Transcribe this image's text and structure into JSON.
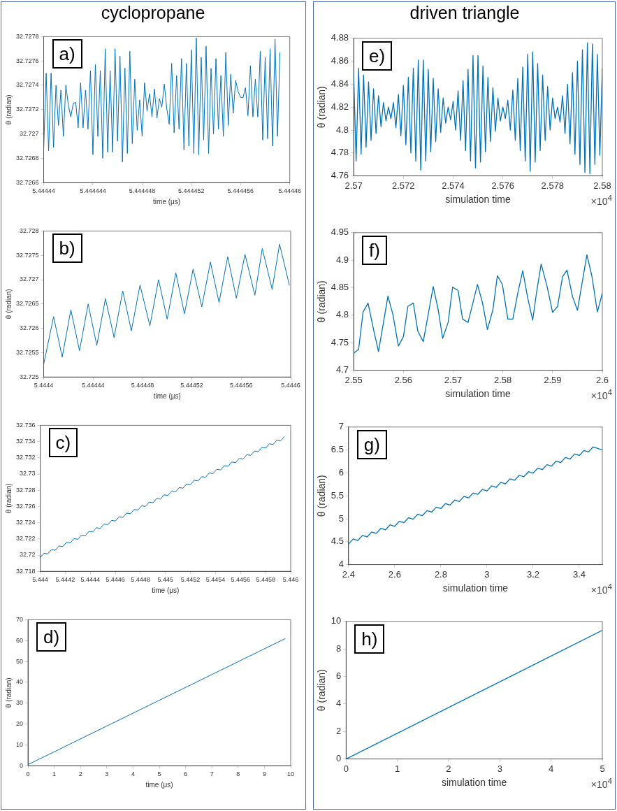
{
  "chart_data": [
    {
      "type": "line",
      "title": "cyclopropane",
      "xlabel": "time (μs)",
      "ylabel": "θ (radian)",
      "annotations": [
        "a)"
      ],
      "color": "#0072bd",
      "marker": "none",
      "xlim": [
        5.44444,
        5.44446
      ],
      "ylim": [
        32.7266,
        32.7278
      ],
      "xticks": [
        5.44444,
        5.444444,
        5.444448,
        5.444452,
        5.444456,
        5.44446
      ],
      "yticks": [
        32.7266,
        32.7268,
        32.727,
        32.7272,
        32.7274,
        32.7276,
        32.7278
      ],
      "x": [
        5.44444,
        5.4444402,
        5.4444404,
        5.4444406,
        5.4444408,
        5.444441,
        5.4444412,
        5.4444414,
        5.4444416,
        5.4444418,
        5.444442,
        5.4444422,
        5.4444424,
        5.4444426,
        5.4444428,
        5.444443,
        5.4444432,
        5.4444434,
        5.4444436,
        5.4444438,
        5.444444,
        5.4444442,
        5.4444444,
        5.4444446,
        5.4444448,
        5.444445,
        5.4444452,
        5.4444454,
        5.4444456,
        5.4444458,
        5.444446,
        5.4444462,
        5.4444464,
        5.4444466,
        5.4444468,
        5.444447,
        5.4444472,
        5.4444474,
        5.4444476,
        5.4444478,
        5.444448,
        5.4444482,
        5.4444484,
        5.4444486,
        5.4444488,
        5.444449,
        5.4444492,
        5.4444494,
        5.4444496,
        5.4444498,
        5.44445,
        5.4444502,
        5.4444504,
        5.4444506,
        5.4444508,
        5.444451,
        5.4444512,
        5.4444514,
        5.4444516,
        5.4444518,
        5.444452,
        5.4444522,
        5.4444524,
        5.4444526,
        5.4444528,
        5.444453,
        5.4444532,
        5.4444534,
        5.4444536,
        5.4444538,
        5.444454,
        5.4444542,
        5.4444544,
        5.4444546,
        5.4444548,
        5.444455,
        5.4444552,
        5.4444554,
        5.4444556,
        5.4444558,
        5.444456,
        5.4444562,
        5.4444564,
        5.4444566,
        5.4444568,
        5.444457,
        5.4444572,
        5.4444574,
        5.4444576,
        5.4444578,
        5.444458,
        5.4444582,
        5.4444584,
        5.4444586,
        5.4444588,
        5.444459,
        5.4444592
      ],
      "values": [
        32.72688,
        32.7275,
        32.72686,
        32.7275,
        32.72689,
        32.7274,
        32.72707,
        32.72736,
        32.72698,
        32.7274,
        32.72724,
        32.72714,
        32.72725,
        32.72726,
        32.72705,
        32.72742,
        32.72705,
        32.72736,
        32.72704,
        32.72752,
        32.72683,
        32.72757,
        32.72698,
        32.72752,
        32.7268,
        32.7277,
        32.72685,
        32.72752,
        32.72685,
        32.7277,
        32.72694,
        32.72764,
        32.72677,
        32.72754,
        32.72684,
        32.72768,
        32.72692,
        32.72745,
        32.72703,
        32.72728,
        32.72698,
        32.72742,
        32.72719,
        32.72733,
        32.72714,
        32.72737,
        32.72713,
        32.72729,
        32.72722,
        32.72741,
        32.72721,
        32.72708,
        32.72758,
        32.72701,
        32.72748,
        32.72704,
        32.72762,
        32.72687,
        32.72758,
        32.7269,
        32.72769,
        32.72684,
        32.72779,
        32.72683,
        32.72763,
        32.72695,
        32.72772,
        32.72684,
        32.72754,
        32.727,
        32.72762,
        32.72704,
        32.72748,
        32.72698,
        32.72767,
        32.72707,
        32.72749,
        32.72717,
        32.72744,
        32.72735,
        32.7273,
        32.7273,
        32.72738,
        32.72715,
        32.72756,
        32.72714,
        32.72745,
        32.72714,
        32.72768,
        32.72695,
        32.72763,
        32.72696,
        32.7277,
        32.7269,
        32.72778,
        32.72698,
        32.72767
      ]
    },
    {
      "type": "line",
      "xlabel": "time (μs)",
      "ylabel": "θ (radian)",
      "annotations": [
        "b)"
      ],
      "color": "#0072bd",
      "marker": "none",
      "xlim": [
        5.4444,
        5.4446
      ],
      "ylim": [
        32.725,
        32.728
      ],
      "xticks": [
        5.4444,
        5.44444,
        5.44448,
        5.44452,
        5.44456,
        5.4446
      ],
      "yticks": [
        32.725,
        32.7255,
        32.726,
        32.7265,
        32.727,
        32.7275,
        32.728
      ],
      "x": [
        5.4444,
        5.444408,
        5.444415,
        5.444422,
        5.444429,
        5.444436,
        5.444443,
        5.44445,
        5.444457,
        5.444464,
        5.444471,
        5.444478,
        5.444486,
        5.444493,
        5.4445,
        5.444507,
        5.444514,
        5.444521,
        5.444528,
        5.444535,
        5.444542,
        5.444549,
        5.444556,
        5.444563,
        5.444571,
        5.444577,
        5.444585,
        5.444591,
        5.444599
      ],
      "values": [
        32.72526,
        32.72624,
        32.72541,
        32.72638,
        32.72554,
        32.7265,
        32.72565,
        32.72661,
        32.72581,
        32.72677,
        32.72595,
        32.72689,
        32.72605,
        32.727,
        32.72619,
        32.72714,
        32.7263,
        32.72722,
        32.72644,
        32.72736,
        32.72653,
        32.72747,
        32.72662,
        32.72752,
        32.72668,
        32.72764,
        32.7268,
        32.72773,
        32.72688
      ]
    },
    {
      "type": "line",
      "xlabel": "time (μs)",
      "ylabel": "θ (radian)",
      "annotations": [
        "c)"
      ],
      "color": "#0072bd",
      "marker": "none",
      "xlim": [
        5.444,
        5.446
      ],
      "ylim": [
        32.718,
        32.736
      ],
      "xticks": [
        5.444,
        5.4442,
        5.4444,
        5.4446,
        5.4448,
        5.445,
        5.4452,
        5.4454,
        5.4456,
        5.4458,
        5.446
      ],
      "yticks": [
        32.718,
        32.72,
        32.722,
        32.724,
        32.726,
        32.728,
        32.73,
        32.732,
        32.734,
        32.736
      ],
      "x": [
        5.444,
        5.44403,
        5.44406,
        5.44409,
        5.44412,
        5.44415,
        5.44418,
        5.44421,
        5.44424,
        5.44427,
        5.4443,
        5.44433,
        5.44436,
        5.44439,
        5.44442,
        5.44445,
        5.44448,
        5.44451,
        5.44454,
        5.44457,
        5.4446,
        5.44463,
        5.44466,
        5.44469,
        5.44472,
        5.44475,
        5.44478,
        5.44481,
        5.44484,
        5.44487,
        5.4449,
        5.44493,
        5.44496,
        5.44499,
        5.44502,
        5.44505,
        5.44508,
        5.44511,
        5.44514,
        5.44517,
        5.4452,
        5.44523,
        5.44526,
        5.44529,
        5.44532,
        5.44535,
        5.44538,
        5.44541,
        5.44544,
        5.44547,
        5.4455,
        5.44553,
        5.44556,
        5.44559,
        5.44562,
        5.44565,
        5.44568,
        5.44571,
        5.44574,
        5.44577,
        5.4458,
        5.44583,
        5.44586,
        5.44589,
        5.44592,
        5.44595
      ],
      "values": [
        32.7197,
        32.72023,
        32.72015,
        32.72068,
        32.7206,
        32.72113,
        32.72105,
        32.72158,
        32.7215,
        32.72203,
        32.72195,
        32.72248,
        32.7224,
        32.72293,
        32.72285,
        32.72338,
        32.7233,
        32.72383,
        32.72375,
        32.72428,
        32.7242,
        32.72473,
        32.72465,
        32.72518,
        32.7251,
        32.72563,
        32.72555,
        32.72608,
        32.726,
        32.72653,
        32.72645,
        32.72698,
        32.7269,
        32.72743,
        32.72735,
        32.72788,
        32.7278,
        32.72833,
        32.72825,
        32.72878,
        32.7287,
        32.72923,
        32.72915,
        32.72968,
        32.7296,
        32.73013,
        32.73005,
        32.73058,
        32.7305,
        32.73103,
        32.73095,
        32.73148,
        32.7314,
        32.73193,
        32.73185,
        32.73238,
        32.7323,
        32.73283,
        32.73275,
        32.73328,
        32.7332,
        32.73373,
        32.73365,
        32.73418,
        32.7341,
        32.73463
      ]
    },
    {
      "type": "line",
      "xlabel": "time (μs)",
      "ylabel": "θ (radian)",
      "annotations": [
        "d)"
      ],
      "color": "#0072bd",
      "marker": "none",
      "xlim": [
        0,
        10
      ],
      "ylim": [
        0,
        70
      ],
      "xticks": [
        0,
        1,
        2,
        3,
        4,
        5,
        6,
        7,
        8,
        9,
        10
      ],
      "yticks": [
        0,
        10,
        20,
        30,
        40,
        50,
        60,
        70
      ],
      "x": [
        0,
        9.8
      ],
      "values": [
        0.5,
        61
      ]
    },
    {
      "type": "line",
      "title": "driven triangle",
      "xlabel": "simulation time",
      "ylabel": "θ (radian)",
      "annotations": [
        "e)",
        "×10$^{4}$"
      ],
      "color": "#0072bd",
      "marker": "none",
      "xlim": [
        2.57,
        2.58
      ],
      "ylim": [
        4.76,
        4.88
      ],
      "xticks": [
        2.57,
        2.572,
        2.574,
        2.576,
        2.578,
        2.58
      ],
      "yticks": [
        4.76,
        4.78,
        4.8,
        4.82,
        4.84,
        4.86,
        4.88
      ],
      "x": [
        2.57,
        2.5701,
        2.5702,
        2.5703,
        2.5704,
        2.5705,
        2.5706,
        2.5707,
        2.5708,
        2.5709,
        2.571,
        2.5711,
        2.5712,
        2.5713,
        2.5714,
        2.5715,
        2.5716,
        2.5717,
        2.5718,
        2.5719,
        2.572,
        2.5721,
        2.5722,
        2.5723,
        2.5724,
        2.5725,
        2.5726,
        2.5727,
        2.5728,
        2.5729,
        2.573,
        2.5731,
        2.5732,
        2.5733,
        2.5734,
        2.5735,
        2.5736,
        2.5737,
        2.5738,
        2.5739,
        2.574,
        2.5741,
        2.5742,
        2.5743,
        2.5744,
        2.5745,
        2.5746,
        2.5747,
        2.5748,
        2.5749,
        2.575,
        2.5751,
        2.5752,
        2.5753,
        2.5754,
        2.5755,
        2.5756,
        2.5757,
        2.5758,
        2.5759,
        2.576,
        2.5761,
        2.5762,
        2.5763,
        2.5764,
        2.5765,
        2.5766,
        2.5767,
        2.5768,
        2.5769,
        2.577,
        2.5771,
        2.5772,
        2.5773,
        2.5774,
        2.5775,
        2.5776,
        2.5777,
        2.5778,
        2.5779,
        2.578,
        2.5781,
        2.5782,
        2.5783,
        2.5784,
        2.5785,
        2.5786,
        2.5787,
        2.5788,
        2.5789,
        2.579,
        2.5791,
        2.5792,
        2.5793,
        2.5794,
        2.5795,
        2.5796,
        2.5797,
        2.5798,
        2.5799,
        2.58
      ],
      "values": [
        4.85,
        4.773,
        4.854,
        4.779,
        4.848,
        4.785,
        4.842,
        4.791,
        4.836,
        4.797,
        4.83,
        4.803,
        4.824,
        4.808,
        4.82,
        4.81,
        4.824,
        4.802,
        4.831,
        4.795,
        4.839,
        4.787,
        4.846,
        4.78,
        4.854,
        4.773,
        4.861,
        4.765,
        4.861,
        4.773,
        4.853,
        4.781,
        4.845,
        4.79,
        4.836,
        4.798,
        4.828,
        4.806,
        4.82,
        4.809,
        4.825,
        4.8,
        4.834,
        4.791,
        4.843,
        4.782,
        4.853,
        4.773,
        4.865,
        4.767,
        4.865,
        4.772,
        4.856,
        4.781,
        4.846,
        4.79,
        4.837,
        4.799,
        4.828,
        4.808,
        4.82,
        4.81,
        4.826,
        4.8,
        4.835,
        4.791,
        4.845,
        4.782,
        4.855,
        4.773,
        4.866,
        4.764,
        4.868,
        4.772,
        4.858,
        4.782,
        4.848,
        4.791,
        4.838,
        4.8,
        4.828,
        4.81,
        4.82,
        4.807,
        4.83,
        4.797,
        4.84,
        4.788,
        4.85,
        4.779,
        4.86,
        4.77,
        4.87,
        4.763,
        4.876,
        4.762,
        4.875,
        4.77,
        4.866,
        4.778,
        4.854
      ]
    },
    {
      "type": "line",
      "xlabel": "simulation time",
      "ylabel": "θ (radian)",
      "annotations": [
        "f)",
        "×10$^{4}$"
      ],
      "color": "#0072bd",
      "marker": "none",
      "xlim": [
        2.55,
        2.6
      ],
      "ylim": [
        4.7,
        4.95
      ],
      "xticks": [
        2.55,
        2.56,
        2.57,
        2.58,
        2.59,
        2.6
      ],
      "yticks": [
        4.7,
        4.75,
        4.8,
        4.85,
        4.9,
        4.95
      ],
      "x": [
        2.55,
        2.551,
        2.5519,
        2.5529,
        2.554,
        2.555,
        2.5569,
        2.5579,
        2.559,
        2.56,
        2.5609,
        2.562,
        2.5629,
        2.564,
        2.566,
        2.567,
        2.5679,
        2.569,
        2.5699,
        2.571,
        2.5719,
        2.573,
        2.5749,
        2.5759,
        2.5769,
        2.578,
        2.5789,
        2.5799,
        2.581,
        2.582,
        2.583,
        2.584,
        2.585,
        2.586,
        2.5868,
        2.5877,
        2.5889,
        2.59,
        2.591,
        2.592,
        2.5929,
        2.594,
        2.595,
        2.5969,
        2.5979,
        2.599,
        2.6
      ],
      "values": [
        4.731,
        4.738,
        4.806,
        4.822,
        4.774,
        4.734,
        4.835,
        4.801,
        4.744,
        4.761,
        4.816,
        4.822,
        4.771,
        4.752,
        4.852,
        4.81,
        4.758,
        4.787,
        4.851,
        4.845,
        4.793,
        4.787,
        4.856,
        4.823,
        4.774,
        4.81,
        4.872,
        4.856,
        4.793,
        4.793,
        4.84,
        4.881,
        4.831,
        4.791,
        4.843,
        4.893,
        4.852,
        4.805,
        4.816,
        4.87,
        4.882,
        4.834,
        4.809,
        4.91,
        4.871,
        4.806,
        4.84
      ]
    },
    {
      "type": "line",
      "xlabel": "simulation time",
      "ylabel": "θ (radian)",
      "annotations": [
        "g)",
        "×10$^{4}$"
      ],
      "color": "#0072bd",
      "marker": "none",
      "xlim": [
        2.4,
        3.5
      ],
      "ylim": [
        4,
        7
      ],
      "xticks": [
        2.4,
        2.6,
        2.8,
        3,
        3.2,
        3.4
      ],
      "yticks": [
        4,
        4.5,
        5,
        5.5,
        6,
        6.5,
        7
      ],
      "x": [
        2.4,
        2.42,
        2.44,
        2.46,
        2.48,
        2.5,
        2.52,
        2.54,
        2.56,
        2.58,
        2.6,
        2.62,
        2.64,
        2.66,
        2.68,
        2.7,
        2.72,
        2.74,
        2.76,
        2.78,
        2.8,
        2.82,
        2.84,
        2.86,
        2.88,
        2.9,
        2.92,
        2.94,
        2.96,
        2.98,
        3,
        3.02,
        3.04,
        3.06,
        3.08,
        3.1,
        3.12,
        3.14,
        3.16,
        3.18,
        3.2,
        3.22,
        3.24,
        3.26,
        3.28,
        3.3,
        3.32,
        3.34,
        3.36,
        3.38,
        3.4,
        3.42,
        3.44,
        3.46,
        3.48,
        3.5
      ],
      "values": [
        4.45,
        4.559,
        4.527,
        4.636,
        4.604,
        4.713,
        4.682,
        4.791,
        4.759,
        4.868,
        4.836,
        4.945,
        4.913,
        5.022,
        4.99,
        5.099,
        5.068,
        5.177,
        5.145,
        5.254,
        5.222,
        5.331,
        5.299,
        5.408,
        5.376,
        5.485,
        5.454,
        5.563,
        5.531,
        5.64,
        5.608,
        5.717,
        5.685,
        5.794,
        5.762,
        5.871,
        5.84,
        5.949,
        5.917,
        6.026,
        5.994,
        6.103,
        6.071,
        6.18,
        6.148,
        6.257,
        6.226,
        6.335,
        6.303,
        6.412,
        6.38,
        6.489,
        6.457,
        6.566,
        6.534,
        6.5
      ]
    },
    {
      "type": "line",
      "xlabel": "simulation time",
      "ylabel": "θ (radian)",
      "annotations": [
        "h)",
        "×10$^{4}$"
      ],
      "color": "#0072bd",
      "marker": "none",
      "xlim": [
        0,
        5
      ],
      "ylim": [
        0,
        10
      ],
      "xticks": [
        0,
        1,
        2,
        3,
        4,
        5
      ],
      "yticks": [
        0,
        2,
        4,
        6,
        8,
        10
      ],
      "x": [
        0,
        5
      ],
      "values": [
        0,
        9.35
      ]
    }
  ]
}
